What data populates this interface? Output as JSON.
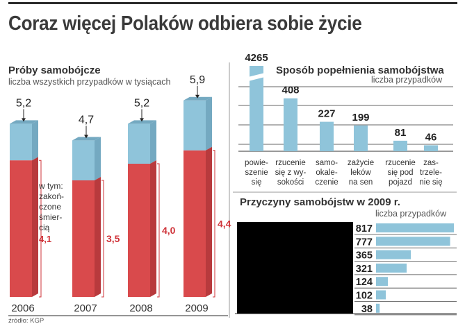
{
  "headline": "Coraz więcej Polaków odbiera sobie życie",
  "source": "źródło: KGP",
  "colors": {
    "blue": "#8fc4da",
    "blue_top": "#74a9c1",
    "red": "#d94a4c",
    "red_side": "#b83a3d",
    "red_label": "#cf3339",
    "rule": "#2b2b2b"
  },
  "chart_data": [
    {
      "type": "bar",
      "title": "Próby samobójcze",
      "subtitle": "liczba wszystkich przypadków w tysiącach",
      "categories": [
        "2006",
        "2007",
        "2008",
        "2009"
      ],
      "series": [
        {
          "name": "próby samobójcze",
          "values": [
            5.2,
            4.7,
            5.2,
            5.9
          ],
          "labels": [
            "5,2",
            "4,7",
            "5,2",
            "5,9"
          ]
        },
        {
          "name": "w tym: zakończone śmiercią",
          "values": [
            4.1,
            3.5,
            4.0,
            4.4
          ],
          "labels": [
            "4,1",
            "3,5",
            "4,0",
            "4,4"
          ]
        }
      ],
      "annotation": {
        "lines": [
          "w tym:",
          "zakoń-",
          "czone",
          "śmier-",
          "cią"
        ]
      },
      "ylim": [
        0,
        6.4
      ]
    },
    {
      "type": "bar",
      "title": "Sposób popełnienia samobójstwa",
      "subtitle": "liczba przypadków",
      "categories": [
        {
          "lines": [
            "powie-",
            "szenie",
            "się"
          ]
        },
        {
          "lines": [
            "rzucenie",
            "się z wy-",
            "sokości"
          ]
        },
        {
          "lines": [
            "samo-",
            "okale-",
            "czenie"
          ]
        },
        {
          "lines": [
            "zażycie",
            "leków",
            "na sen"
          ]
        },
        {
          "lines": [
            "rzucenie",
            "się pod",
            "pojazd"
          ]
        },
        {
          "lines": [
            "zas-",
            "trzele-",
            "nie się"
          ]
        }
      ],
      "values": [
        4265,
        408,
        227,
        199,
        81,
        46
      ],
      "labels": [
        "4265",
        "408",
        "227",
        "199",
        "81",
        "46"
      ],
      "axis_break": true,
      "ylim": [
        0,
        500
      ]
    },
    {
      "type": "bar",
      "orientation": "horizontal",
      "title": "Przyczyny samobójstw w 2009 r.",
      "subtitle": "liczba przypadków",
      "values": [
        817,
        777,
        365,
        321,
        124,
        102,
        38
      ],
      "labels": [
        "817",
        "777",
        "365",
        "321",
        "124",
        "102",
        "38"
      ],
      "xlim": [
        0,
        840
      ]
    }
  ]
}
